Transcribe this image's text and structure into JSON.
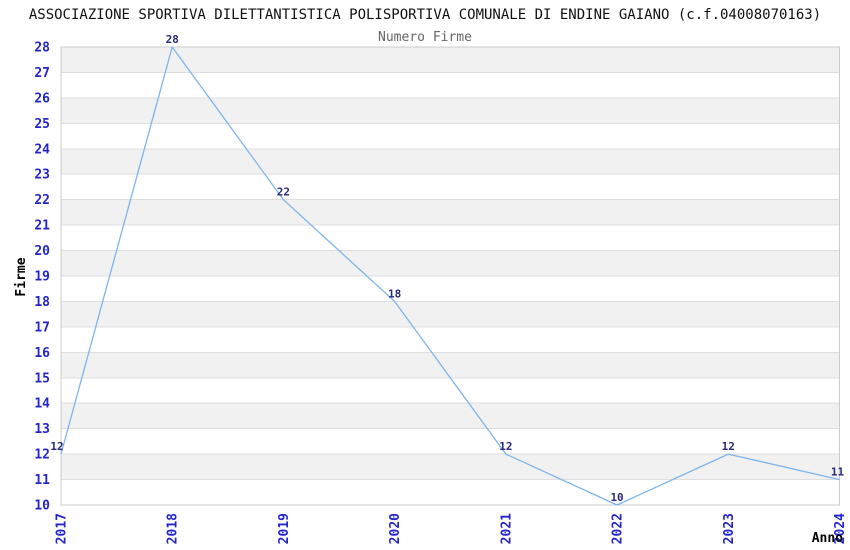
{
  "chart_data": {
    "type": "line",
    "title": "ASSOCIAZIONE SPORTIVA DILETTANTISTICA POLISPORTIVA COMUNALE DI ENDINE GAIANO (c.f.04008070163)",
    "subtitle": "Numero Firme",
    "xlabel": "Anno",
    "ylabel": "Firme",
    "categories": [
      "2017",
      "2018",
      "2019",
      "2020",
      "2021",
      "2022",
      "2023",
      "2024"
    ],
    "values": [
      12,
      28,
      22,
      18,
      12,
      10,
      12,
      11
    ],
    "ylim": [
      10,
      28
    ],
    "y_tick_step": 1,
    "grid": true,
    "alternate_bands": true,
    "legend_position": "none",
    "colors": {
      "series_line": "#7cb5ec",
      "tick_label": "#2424cc",
      "data_label": "#29297d",
      "band": "#f1f1f1",
      "gridline": "#dedede",
      "plot_border": "#cccccc",
      "background": "#ffffff",
      "title": "#111111",
      "subtitle": "#666666"
    }
  }
}
